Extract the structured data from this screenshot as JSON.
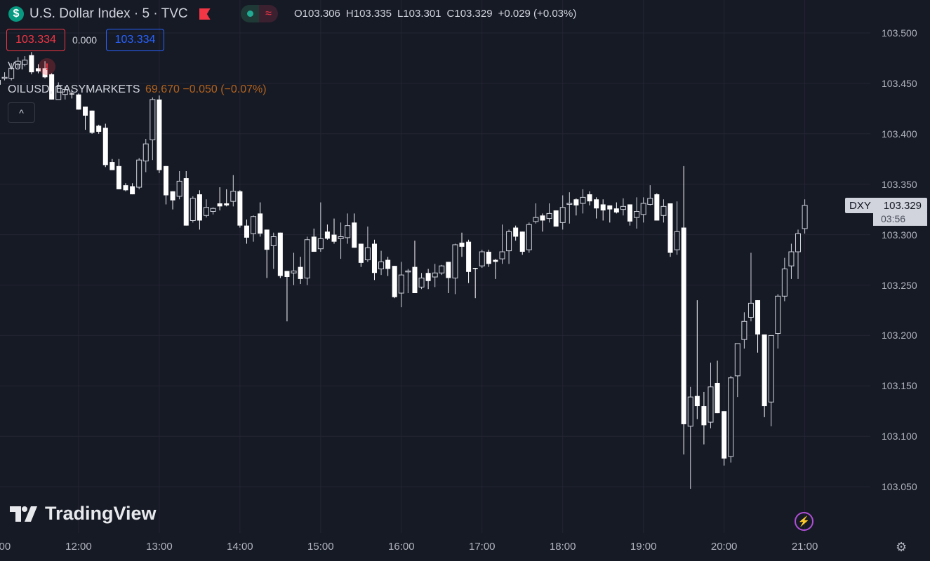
{
  "header": {
    "symbol_icon": "dollar-icon",
    "title": "U.S. Dollar Index · 5 · TVC",
    "flag_icon": "red-flag-icon",
    "status_icon": "market-open-dot-icon",
    "delay_icon": "approx-icon",
    "ohlc": {
      "o": "O103.306",
      "h": "H103.335",
      "l": "L103.301",
      "c": "C103.329",
      "change": "+0.029 (+0.03%)"
    }
  },
  "quote": {
    "sell": "103.334",
    "spread": "0.000",
    "buy": "103.334"
  },
  "indicators": {
    "vol_label": "Vol",
    "vol_warning": "!",
    "compare_symbol": "OILUSD, EASYMARKETS",
    "compare_value": "69.670 −0.050 (−0.07%)",
    "collapse": "^"
  },
  "price_tag": {
    "symbol": "DXY",
    "price": "103.329",
    "countdown": "03:56"
  },
  "branding": {
    "logo": "TradingView"
  },
  "icons": {
    "lightning": "⚡",
    "settings": "⚙"
  },
  "colors": {
    "background": "#161a25",
    "grid": "#232632",
    "candle_down": "#ffffff",
    "candle_up_outline": "#d1d4dc",
    "axis_text": "#b2b5be"
  },
  "chart_data": {
    "type": "candlestick",
    "interval": "5",
    "ylim": [
      103.03,
      103.52
    ],
    "grid": true,
    "y_ticks": [
      "103.500",
      "103.450",
      "103.400",
      "103.350",
      "103.300",
      "103.250",
      "103.200",
      "103.150",
      "103.100",
      "103.050"
    ],
    "x_ticks": [
      "11:00",
      "12:00",
      "13:00",
      "14:00",
      "15:00",
      "16:00",
      "17:00",
      "18:00",
      "19:00",
      "20:00",
      "21:00"
    ],
    "columns": [
      "time",
      "open",
      "high",
      "low",
      "close"
    ],
    "candles": [
      [
        "11:00",
        103.449,
        103.456,
        103.446,
        103.453
      ],
      [
        "11:05",
        103.455,
        103.461,
        103.453,
        103.456
      ],
      [
        "11:10",
        103.455,
        103.47,
        103.453,
        103.465
      ],
      [
        "11:15",
        103.469,
        103.476,
        103.465,
        103.472
      ],
      [
        "11:20",
        103.469,
        103.477,
        103.467,
        103.473
      ],
      [
        "11:25",
        103.478,
        103.481,
        103.459,
        103.461
      ],
      [
        "11:30",
        103.465,
        103.469,
        103.46,
        103.462
      ],
      [
        "11:35",
        103.465,
        103.472,
        103.455,
        103.456
      ],
      [
        "11:40",
        103.459,
        103.46,
        103.434,
        103.434
      ],
      [
        "11:45",
        103.434,
        103.451,
        103.434,
        103.447
      ],
      [
        "11:50",
        103.439,
        103.447,
        103.434,
        103.444
      ],
      [
        "11:55",
        103.44,
        103.444,
        103.435,
        103.439
      ],
      [
        "12:00",
        103.439,
        103.44,
        103.424,
        103.424
      ],
      [
        "12:05",
        103.427,
        103.427,
        103.404,
        103.418
      ],
      [
        "12:10",
        103.423,
        103.423,
        103.4,
        103.401
      ],
      [
        "12:15",
        103.408,
        103.409,
        103.4,
        103.402
      ],
      [
        "12:20",
        103.406,
        103.41,
        103.367,
        103.369
      ],
      [
        "12:25",
        103.372,
        103.375,
        103.364,
        103.364
      ],
      [
        "12:30",
        103.368,
        103.375,
        103.345,
        103.345
      ],
      [
        "12:35",
        103.349,
        103.351,
        103.343,
        103.344
      ],
      [
        "12:40",
        103.348,
        103.351,
        103.34,
        103.34
      ],
      [
        "12:45",
        103.347,
        103.376,
        103.345,
        103.374
      ],
      [
        "12:50",
        103.373,
        103.395,
        103.362,
        103.39
      ],
      [
        "12:55",
        103.394,
        103.436,
        103.374,
        103.434
      ],
      [
        "13:00",
        103.434,
        103.438,
        103.361,
        103.364
      ],
      [
        "13:05",
        103.368,
        103.368,
        103.33,
        103.339
      ],
      [
        "13:10",
        103.343,
        103.343,
        103.325,
        103.334
      ],
      [
        "13:15",
        103.338,
        103.363,
        103.335,
        103.353
      ],
      [
        "13:20",
        103.356,
        103.363,
        103.309,
        103.309
      ],
      [
        "13:25",
        103.314,
        103.338,
        103.312,
        103.336
      ],
      [
        "13:30",
        103.34,
        103.344,
        103.305,
        103.314
      ],
      [
        "13:35",
        103.319,
        103.335,
        103.317,
        103.327
      ],
      [
        "13:40",
        103.323,
        103.327,
        103.32,
        103.326
      ],
      [
        "13:45",
        103.331,
        103.347,
        103.324,
        103.328
      ],
      [
        "13:50",
        103.331,
        103.345,
        103.328,
        103.329
      ],
      [
        "13:55",
        103.333,
        103.359,
        103.328,
        103.343
      ],
      [
        "14:00",
        103.343,
        103.344,
        103.307,
        103.309
      ],
      [
        "14:05",
        103.309,
        103.315,
        103.291,
        103.297
      ],
      [
        "14:10",
        103.301,
        103.319,
        103.293,
        103.318
      ],
      [
        "14:15",
        103.321,
        103.332,
        103.298,
        103.301
      ],
      [
        "14:20",
        103.305,
        103.305,
        103.257,
        103.285
      ],
      [
        "14:25",
        103.289,
        103.302,
        103.266,
        103.298
      ],
      [
        "14:30",
        103.302,
        103.302,
        103.257,
        103.259
      ],
      [
        "14:35",
        103.264,
        103.264,
        103.214,
        103.258
      ],
      [
        "14:40",
        103.262,
        103.282,
        103.25,
        103.264
      ],
      [
        "14:45",
        103.268,
        103.278,
        103.251,
        103.256
      ],
      [
        "14:50",
        103.257,
        103.298,
        103.25,
        103.295
      ],
      [
        "14:55",
        103.298,
        103.306,
        103.283,
        103.283
      ],
      [
        "15:00",
        103.286,
        103.332,
        103.283,
        103.296
      ],
      [
        "15:05",
        103.303,
        103.31,
        103.295,
        103.296
      ],
      [
        "15:10",
        103.3,
        103.316,
        103.291,
        103.293
      ],
      [
        "15:15",
        103.296,
        103.312,
        103.276,
        103.298
      ],
      [
        "15:20",
        103.297,
        103.321,
        103.291,
        103.309
      ],
      [
        "15:25",
        103.312,
        103.321,
        103.287,
        103.287
      ],
      [
        "15:30",
        103.291,
        103.291,
        103.268,
        103.272
      ],
      [
        "15:35",
        103.275,
        103.308,
        103.273,
        103.287
      ],
      [
        "15:40",
        103.291,
        103.295,
        103.255,
        103.262
      ],
      [
        "15:45",
        103.266,
        103.284,
        103.26,
        103.273
      ],
      [
        "15:50",
        103.275,
        103.278,
        103.259,
        103.266
      ],
      [
        "15:55",
        103.269,
        103.269,
        103.237,
        103.238
      ],
      [
        "16:00",
        103.242,
        103.273,
        103.228,
        103.26
      ],
      [
        "16:05",
        103.263,
        103.266,
        103.242,
        103.264
      ],
      [
        "16:10",
        103.268,
        103.294,
        103.242,
        103.242
      ],
      [
        "16:15",
        103.248,
        103.262,
        103.246,
        103.257
      ],
      [
        "16:20",
        103.262,
        103.266,
        103.246,
        103.254
      ],
      [
        "16:25",
        103.258,
        103.271,
        103.248,
        103.262
      ],
      [
        "16:30",
        103.262,
        103.27,
        103.26,
        103.269
      ],
      [
        "16:35",
        103.273,
        103.273,
        103.242,
        103.257
      ],
      [
        "16:40",
        103.257,
        103.291,
        103.241,
        103.29
      ],
      [
        "16:45",
        103.292,
        103.302,
        103.278,
        103.288
      ],
      [
        "16:50",
        103.293,
        103.295,
        103.252,
        103.263
      ],
      [
        "16:55",
        103.267,
        103.267,
        103.237,
        103.266
      ],
      [
        "17:00",
        103.269,
        103.285,
        103.267,
        103.283
      ],
      [
        "17:05",
        103.283,
        103.285,
        103.268,
        103.271
      ],
      [
        "17:10",
        103.275,
        103.276,
        103.256,
        103.273
      ],
      [
        "17:15",
        103.276,
        103.31,
        103.271,
        103.283
      ],
      [
        "17:20",
        103.284,
        103.305,
        103.271,
        103.303
      ],
      [
        "17:25",
        103.307,
        103.309,
        103.294,
        103.298
      ],
      [
        "17:30",
        103.303,
        103.303,
        103.28,
        103.283
      ],
      [
        "17:35",
        103.285,
        103.312,
        103.282,
        103.31
      ],
      [
        "17:40",
        103.313,
        103.331,
        103.311,
        103.317
      ],
      [
        "17:45",
        103.319,
        103.321,
        103.303,
        103.314
      ],
      [
        "17:50",
        103.316,
        103.331,
        103.312,
        103.321
      ],
      [
        "17:55",
        103.324,
        103.324,
        103.308,
        103.308
      ],
      [
        "18:00",
        103.312,
        103.339,
        103.305,
        103.327
      ],
      [
        "18:05",
        103.33,
        103.342,
        103.311,
        103.331
      ],
      [
        "18:10",
        103.335,
        103.336,
        103.319,
        103.329
      ],
      [
        "18:15",
        103.331,
        103.345,
        103.321,
        103.337
      ],
      [
        "18:20",
        103.34,
        103.343,
        103.329,
        103.333
      ],
      [
        "18:25",
        103.335,
        103.337,
        103.316,
        103.326
      ],
      [
        "18:30",
        103.33,
        103.335,
        103.314,
        103.324
      ],
      [
        "18:35",
        103.329,
        103.329,
        103.312,
        103.325
      ],
      [
        "18:40",
        103.326,
        103.332,
        103.321,
        103.322
      ],
      [
        "18:45",
        103.325,
        103.336,
        103.319,
        103.328
      ],
      [
        "18:50",
        103.33,
        103.33,
        103.309,
        103.313
      ],
      [
        "18:55",
        103.317,
        103.337,
        103.306,
        103.323
      ],
      [
        "19:00",
        103.32,
        103.337,
        103.312,
        103.331
      ],
      [
        "19:05",
        103.33,
        103.349,
        103.329,
        103.336
      ],
      [
        "19:10",
        103.34,
        103.341,
        103.314,
        103.314
      ],
      [
        "19:15",
        103.319,
        103.335,
        103.312,
        103.328
      ],
      [
        "19:20",
        103.331,
        103.331,
        103.278,
        103.282
      ],
      [
        "19:25",
        103.285,
        103.333,
        103.28,
        103.303
      ],
      [
        "19:30",
        103.307,
        103.368,
        103.082,
        103.112
      ],
      [
        "19:35",
        103.11,
        103.149,
        103.048,
        103.139
      ],
      [
        "19:40",
        103.14,
        103.235,
        103.117,
        103.13
      ],
      [
        "19:45",
        103.13,
        103.144,
        103.092,
        103.111
      ],
      [
        "19:50",
        103.114,
        103.173,
        103.108,
        103.149
      ],
      [
        "19:55",
        103.153,
        103.175,
        103.123,
        103.123
      ],
      [
        "20:00",
        103.125,
        103.125,
        103.071,
        103.078
      ],
      [
        "20:05",
        103.08,
        103.16,
        103.074,
        103.158
      ],
      [
        "20:10",
        103.16,
        103.192,
        103.139,
        103.192
      ],
      [
        "20:15",
        103.196,
        103.223,
        103.187,
        103.214
      ],
      [
        "20:20",
        103.218,
        103.282,
        103.214,
        103.232
      ],
      [
        "20:25",
        103.235,
        103.235,
        103.183,
        103.201
      ],
      [
        "20:30",
        103.201,
        103.201,
        103.119,
        103.13
      ],
      [
        "20:35",
        103.134,
        103.2,
        103.11,
        103.2
      ],
      [
        "20:40",
        103.202,
        103.241,
        103.187,
        103.239
      ],
      [
        "20:45",
        103.239,
        103.277,
        103.234,
        103.266
      ],
      [
        "20:50",
        103.269,
        103.291,
        103.256,
        103.283
      ],
      [
        "20:55",
        103.283,
        103.305,
        103.256,
        103.301
      ],
      [
        "21:00",
        103.306,
        103.335,
        103.301,
        103.329
      ]
    ]
  }
}
